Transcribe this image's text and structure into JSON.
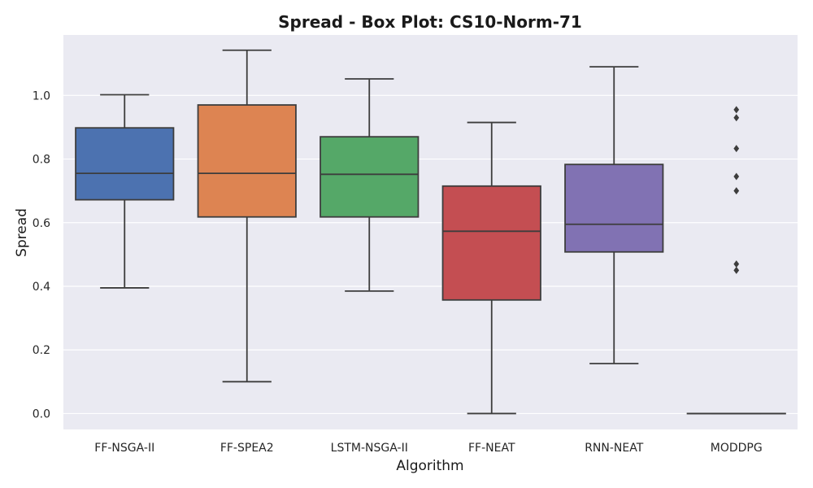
{
  "chart_data": {
    "type": "box",
    "title": "Spread - Box Plot: CS10-Norm-71",
    "xlabel": "Algorithm",
    "ylabel": "Spread",
    "ylim": [
      -0.05,
      1.19
    ],
    "yticks": [
      0.0,
      0.2,
      0.4,
      0.6,
      0.8,
      1.0
    ],
    "grid": true,
    "categories": [
      "FF-NSGA-II",
      "FF-SPEA2",
      "LSTM-NSGA-II",
      "FF-NEAT",
      "RNN-NEAT",
      "MODDPG"
    ],
    "boxes": [
      {
        "name": "FF-NSGA-II",
        "whisker_low": 0.395,
        "q1": 0.672,
        "median": 0.755,
        "q3": 0.898,
        "whisker_high": 1.002,
        "outliers": [],
        "color": "#4c72b0"
      },
      {
        "name": "FF-SPEA2",
        "whisker_low": 0.1,
        "q1": 0.618,
        "median": 0.755,
        "q3": 0.97,
        "whisker_high": 1.142,
        "outliers": [],
        "color": "#dd8452"
      },
      {
        "name": "LSTM-NSGA-II",
        "whisker_low": 0.385,
        "q1": 0.618,
        "median": 0.752,
        "q3": 0.87,
        "whisker_high": 1.052,
        "outliers": [],
        "color": "#55a868"
      },
      {
        "name": "FF-NEAT",
        "whisker_low": 0.0,
        "q1": 0.357,
        "median": 0.573,
        "q3": 0.715,
        "whisker_high": 0.915,
        "outliers": [],
        "color": "#c44e52"
      },
      {
        "name": "RNN-NEAT",
        "whisker_low": 0.157,
        "q1": 0.508,
        "median": 0.595,
        "q3": 0.783,
        "whisker_high": 1.09,
        "outliers": [],
        "color": "#8172b3"
      },
      {
        "name": "MODDPG",
        "whisker_low": 0.0,
        "q1": 0.0,
        "median": 0.0,
        "q3": 0.0,
        "whisker_high": 0.0,
        "outliers": [
          0.955,
          0.93,
          0.833,
          0.745,
          0.7,
          0.47,
          0.45
        ],
        "color": "#937860"
      }
    ],
    "colors": {
      "plot_background": "#eaeaf2",
      "grid": "#ffffff",
      "line": "#3d3d3d"
    }
  }
}
